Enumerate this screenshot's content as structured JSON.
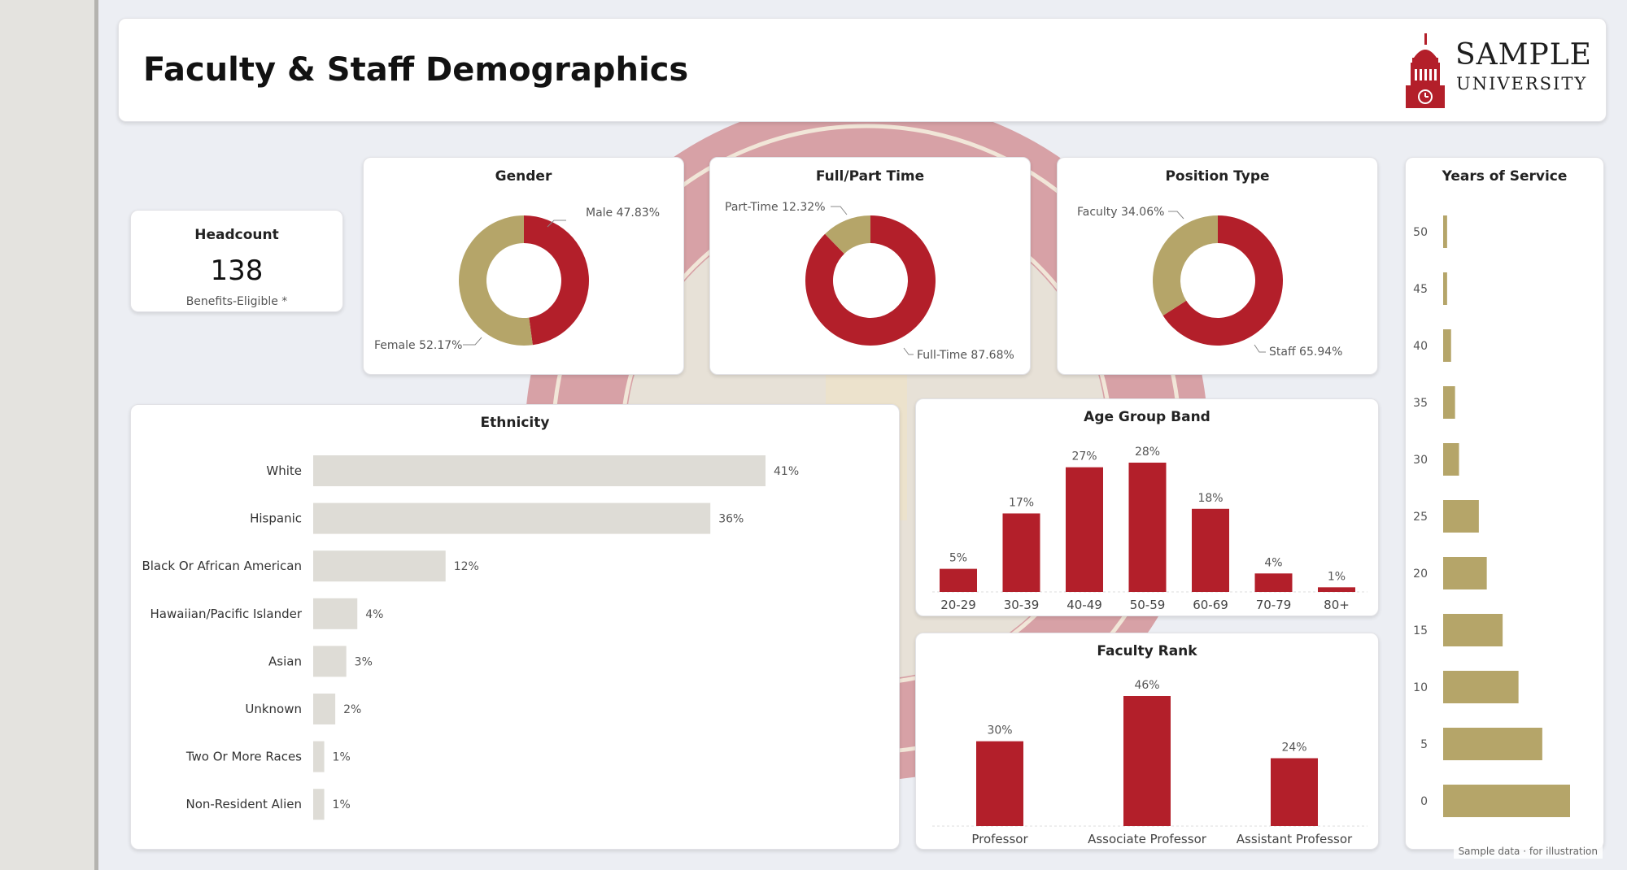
{
  "header": {
    "title": "Faculty & Staff Demographics"
  },
  "logo": {
    "line1": "SAMPLE",
    "line2": "UNIVERSITY",
    "icon": "university-tower-icon"
  },
  "colors": {
    "primary": "#b31f2a",
    "accent": "#b5a569",
    "ethnicity_bar": "#dedcd6",
    "seal": "#d7a1a6"
  },
  "headcount": {
    "title": "Headcount",
    "value": "138",
    "note": "Benefits-Eligible *"
  },
  "gender": {
    "title": "Gender",
    "male_label": "Male 47.83%",
    "female_label": "Female 52.17%"
  },
  "fulltime": {
    "title": "Full/Part Time",
    "part_label": "Part-Time 12.32%",
    "full_label": "Full-Time 87.68%"
  },
  "position": {
    "title": "Position Type",
    "faculty_label": "Faculty 34.06%",
    "staff_label": "Staff 65.94%"
  },
  "ethnicity": {
    "title": "Ethnicity"
  },
  "age": {
    "title": "Age Group Band"
  },
  "rank": {
    "title": "Faculty Rank"
  },
  "years": {
    "title": "Years of Service"
  },
  "footnote": "Sample data · for illustration",
  "chart_data": [
    {
      "type": "pie",
      "title": "Gender",
      "categories": [
        "Male",
        "Female"
      ],
      "values": [
        47.83,
        52.17
      ]
    },
    {
      "type": "pie",
      "title": "Full/Part Time",
      "categories": [
        "Full-Time",
        "Part-Time"
      ],
      "values": [
        87.68,
        12.32
      ]
    },
    {
      "type": "pie",
      "title": "Position Type",
      "categories": [
        "Staff",
        "Faculty"
      ],
      "values": [
        65.94,
        34.06
      ]
    },
    {
      "type": "bar",
      "title": "Ethnicity",
      "orientation": "horizontal",
      "categories": [
        "White",
        "Hispanic",
        "Black Or African American",
        "Hawaiian/Pacific Islander",
        "Asian",
        "Unknown",
        "Two Or More Races",
        "Non-Resident Alien"
      ],
      "values": [
        41,
        36,
        12,
        4,
        3,
        2,
        1,
        1
      ],
      "labels": [
        "41%",
        "36%",
        "12%",
        "4%",
        "3%",
        "2%",
        "1%",
        "1%"
      ]
    },
    {
      "type": "bar",
      "title": "Age Group Band",
      "categories": [
        "20-29",
        "30-39",
        "40-49",
        "50-59",
        "60-69",
        "70-79",
        "80+"
      ],
      "values": [
        5,
        17,
        27,
        28,
        18,
        4,
        1
      ],
      "labels": [
        "5%",
        "17%",
        "27%",
        "28%",
        "18%",
        "4%",
        "1%"
      ]
    },
    {
      "type": "bar",
      "title": "Faculty Rank",
      "categories": [
        "Professor",
        "Associate Professor",
        "Assistant Professor"
      ],
      "values": [
        30,
        46,
        24
      ],
      "labels": [
        "30%",
        "46%",
        "24%"
      ]
    },
    {
      "type": "bar",
      "title": "Years of Service",
      "orientation": "horizontal",
      "categories": [
        "50",
        "45",
        "40",
        "35",
        "30",
        "25",
        "20",
        "15",
        "10",
        "5",
        "0"
      ],
      "values": [
        1,
        1,
        2,
        3,
        4,
        9,
        11,
        15,
        19,
        25,
        32
      ],
      "xlim": [
        0,
        35
      ]
    }
  ]
}
